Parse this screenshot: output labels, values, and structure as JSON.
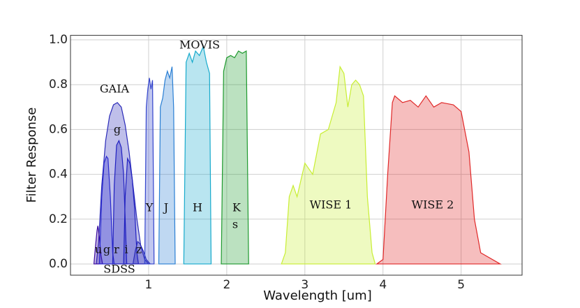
{
  "chart_data": {
    "type": "area",
    "xlabel": "Wavelength [um]",
    "ylabel": "Filter Response",
    "xlim": [
      0,
      5.78
    ],
    "ylim": [
      -0.05,
      1.02
    ],
    "xticks": [
      1,
      2,
      3,
      4,
      5
    ],
    "yticks": [
      {
        "value": 0,
        "label": "0.0"
      },
      0.2,
      0.4,
      0.6,
      0.8,
      {
        "value": 1,
        "label": "1.0"
      }
    ],
    "grid": true,
    "series": [
      {
        "color": "#2a2ab8",
        "x": [
          0.33,
          0.36,
          0.4,
          0.45,
          0.5,
          0.55,
          0.6,
          0.65,
          0.7,
          0.75,
          0.8,
          0.85,
          0.9,
          0.95,
          1.0
        ],
        "values": [
          0,
          0.1,
          0.35,
          0.55,
          0.66,
          0.71,
          0.72,
          0.7,
          0.62,
          0.5,
          0.35,
          0.2,
          0.08,
          0.02,
          0
        ]
      },
      {
        "color": "#3a0aa0",
        "x": [
          0.3,
          0.32,
          0.34,
          0.35,
          0.37,
          0.39,
          0.41
        ],
        "values": [
          0,
          0.08,
          0.15,
          0.17,
          0.12,
          0.04,
          0
        ]
      },
      {
        "color": "#2a2ad0",
        "x": [
          0.37,
          0.4,
          0.43,
          0.46,
          0.48,
          0.51,
          0.54,
          0.56
        ],
        "values": [
          0,
          0.3,
          0.45,
          0.48,
          0.47,
          0.3,
          0.05,
          0
        ]
      },
      {
        "color": "#2020c0",
        "x": [
          0.54,
          0.56,
          0.59,
          0.62,
          0.65,
          0.68,
          0.71,
          0.72
        ],
        "values": [
          0,
          0.35,
          0.53,
          0.55,
          0.52,
          0.4,
          0.1,
          0
        ]
      },
      {
        "color": "#2020c0",
        "x": [
          0.68,
          0.7,
          0.73,
          0.76,
          0.79,
          0.82,
          0.85,
          0.87
        ],
        "values": [
          0,
          0.3,
          0.47,
          0.45,
          0.38,
          0.25,
          0.05,
          0
        ]
      },
      {
        "color": "#2a2ab8",
        "x": [
          0.8,
          0.83,
          0.86,
          0.89,
          0.93,
          0.97,
          1.02
        ],
        "values": [
          0,
          0.06,
          0.1,
          0.09,
          0.06,
          0.02,
          0
        ]
      },
      {
        "color": "#3344cc",
        "x": [
          0.95,
          0.97,
          0.99,
          1.01,
          1.03,
          1.05,
          1.07
        ],
        "values": [
          0,
          0.7,
          0.78,
          0.83,
          0.78,
          0.82,
          0
        ]
      },
      {
        "color": "#2a7fd4",
        "x": [
          1.13,
          1.15,
          1.18,
          1.21,
          1.24,
          1.27,
          1.3,
          1.32,
          1.34
        ],
        "values": [
          0,
          0.7,
          0.74,
          0.82,
          0.86,
          0.83,
          0.88,
          0.7,
          0
        ]
      },
      {
        "color": "#17aacc",
        "x": [
          1.45,
          1.48,
          1.52,
          1.56,
          1.6,
          1.65,
          1.7,
          1.74,
          1.78,
          1.8
        ],
        "values": [
          0,
          0.9,
          0.94,
          0.9,
          0.95,
          0.93,
          0.97,
          0.9,
          0.85,
          0
        ]
      },
      {
        "color": "#1f9a2f",
        "x": [
          1.93,
          1.96,
          2.0,
          2.05,
          2.1,
          2.15,
          2.2,
          2.25,
          2.28
        ],
        "values": [
          0,
          0.86,
          0.92,
          0.93,
          0.92,
          0.95,
          0.94,
          0.95,
          0
        ]
      },
      {
        "color": "#c8ee33",
        "x": [
          2.7,
          2.75,
          2.8,
          2.85,
          2.9,
          3.0,
          3.1,
          3.2,
          3.3,
          3.4,
          3.45,
          3.5,
          3.55,
          3.6,
          3.65,
          3.7,
          3.75,
          3.8,
          3.86,
          3.9
        ],
        "values": [
          0,
          0.05,
          0.3,
          0.35,
          0.3,
          0.45,
          0.4,
          0.58,
          0.6,
          0.72,
          0.88,
          0.85,
          0.7,
          0.8,
          0.82,
          0.8,
          0.75,
          0.3,
          0.05,
          0
        ]
      },
      {
        "color": "#e02828",
        "x": [
          3.92,
          4.0,
          4.06,
          4.12,
          4.15,
          4.25,
          4.35,
          4.45,
          4.55,
          4.65,
          4.75,
          4.9,
          5.0,
          5.1,
          5.17,
          5.25,
          5.5
        ],
        "values": [
          0,
          0.02,
          0.4,
          0.72,
          0.75,
          0.72,
          0.73,
          0.7,
          0.75,
          0.7,
          0.72,
          0.71,
          0.68,
          0.5,
          0.2,
          0.05,
          0
        ]
      }
    ],
    "annotations": [
      "GAIA",
      "g",
      "MOVIS",
      "Y",
      "J",
      "H",
      "K",
      "s",
      "WISE 1",
      "WISE 2",
      "u",
      "g",
      "r",
      "i",
      "z",
      "SDSS"
    ]
  }
}
